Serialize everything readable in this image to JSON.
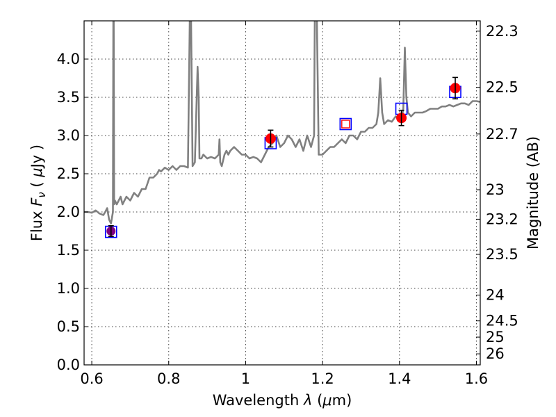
{
  "chart_data": {
    "type": "line",
    "xlabel": {
      "pre": "Wavelength ",
      "symbol": "λ",
      "units_open": " (",
      "mu": "μ",
      "units_rest": "m)"
    },
    "ylabel": {
      "pre": "Flux ",
      "symbol": "F",
      "sub": "ν",
      "units_open": " ( ",
      "mu": "μ",
      "units_rest": "Jy )"
    },
    "y2label": "Magnitude (AB)",
    "xlim": [
      0.58,
      1.61
    ],
    "ylim": [
      0.0,
      4.5
    ],
    "xticks": [
      0.6,
      0.8,
      1.0,
      1.2,
      1.4,
      1.6
    ],
    "xtick_labels": [
      "0.6",
      "0.8",
      "1",
      "1.2",
      "1.4",
      "1.6"
    ],
    "yticks": [
      0.0,
      0.5,
      1.0,
      1.5,
      2.0,
      2.5,
      3.0,
      3.5,
      4.0
    ],
    "ytick_labels": [
      "0.0",
      "0.5",
      "1.0",
      "1.5",
      "2.0",
      "2.5",
      "3.0",
      "3.5",
      "4.0"
    ],
    "y2ticks": [
      "22.3",
      "22.5",
      "22.7",
      "23",
      "23.2",
      "23.5",
      "24",
      "24.5",
      "25",
      "26"
    ],
    "grid": true,
    "colors": {
      "spectrum": "#808080",
      "observed": "#ff0000",
      "model_box": "#0000ff",
      "model_box_inner": "#ff0000",
      "purple_point": "#800080",
      "errorbar": "#000000"
    },
    "series": [
      {
        "name": "model spectrum",
        "x": [
          0.58,
          0.59,
          0.6,
          0.61,
          0.615,
          0.62,
          0.63,
          0.635,
          0.64,
          0.645,
          0.65,
          0.655,
          0.656,
          0.657,
          0.658,
          0.66,
          0.665,
          0.67,
          0.675,
          0.68,
          0.69,
          0.7,
          0.71,
          0.72,
          0.73,
          0.74,
          0.75,
          0.76,
          0.77,
          0.775,
          0.78,
          0.79,
          0.8,
          0.81,
          0.82,
          0.83,
          0.84,
          0.85,
          0.855,
          0.858,
          0.862,
          0.868,
          0.87,
          0.875,
          0.878,
          0.88,
          0.885,
          0.89,
          0.9,
          0.91,
          0.92,
          0.93,
          0.932,
          0.934,
          0.938,
          0.945,
          0.95,
          0.955,
          0.96,
          0.97,
          0.98,
          0.99,
          1.0,
          1.01,
          1.02,
          1.03,
          1.04,
          1.05,
          1.06,
          1.07,
          1.08,
          1.09,
          1.1,
          1.11,
          1.12,
          1.13,
          1.14,
          1.15,
          1.16,
          1.17,
          1.178,
          1.18,
          1.185,
          1.188,
          1.19,
          1.2,
          1.21,
          1.22,
          1.23,
          1.24,
          1.25,
          1.26,
          1.27,
          1.28,
          1.29,
          1.3,
          1.31,
          1.32,
          1.33,
          1.34,
          1.345,
          1.35,
          1.355,
          1.36,
          1.37,
          1.38,
          1.39,
          1.4,
          1.405,
          1.41,
          1.414,
          1.418,
          1.422,
          1.43,
          1.44,
          1.45,
          1.46,
          1.47,
          1.48,
          1.49,
          1.5,
          1.51,
          1.52,
          1.53,
          1.54,
          1.55,
          1.56,
          1.57,
          1.58,
          1.59,
          1.6,
          1.61
        ],
        "y": [
          2.0,
          2.0,
          1.99,
          2.02,
          2.0,
          1.98,
          1.96,
          2.0,
          2.05,
          1.9,
          1.85,
          2.0,
          4.6,
          4.6,
          2.1,
          2.15,
          2.1,
          2.15,
          2.2,
          2.1,
          2.2,
          2.15,
          2.25,
          2.2,
          2.3,
          2.3,
          2.45,
          2.45,
          2.5,
          2.55,
          2.53,
          2.58,
          2.55,
          2.6,
          2.55,
          2.6,
          2.6,
          2.58,
          4.6,
          4.6,
          2.6,
          2.65,
          3.0,
          3.9,
          3.5,
          2.7,
          2.7,
          2.75,
          2.7,
          2.72,
          2.7,
          2.75,
          2.95,
          2.65,
          2.6,
          2.75,
          2.8,
          2.75,
          2.8,
          2.85,
          2.8,
          2.75,
          2.75,
          2.7,
          2.72,
          2.7,
          2.65,
          2.75,
          2.85,
          2.9,
          3.0,
          2.85,
          2.9,
          3.0,
          2.95,
          2.85,
          2.95,
          2.8,
          3.0,
          2.85,
          3.0,
          4.6,
          4.6,
          3.5,
          2.75,
          2.75,
          2.8,
          2.85,
          2.85,
          2.9,
          2.95,
          2.9,
          3.0,
          3.0,
          2.95,
          3.05,
          3.05,
          3.1,
          3.1,
          3.15,
          3.3,
          3.75,
          3.3,
          3.15,
          3.2,
          3.18,
          3.25,
          3.2,
          3.2,
          3.35,
          4.15,
          3.5,
          3.3,
          3.25,
          3.3,
          3.3,
          3.3,
          3.32,
          3.35,
          3.35,
          3.35,
          3.38,
          3.38,
          3.4,
          3.38,
          3.4,
          3.42,
          3.42,
          3.4,
          3.45,
          3.45,
          3.44
        ]
      },
      {
        "name": "observed photometry",
        "points": [
          {
            "x": 1.065,
            "y": 2.96,
            "err": 0.11
          },
          {
            "x": 1.405,
            "y": 3.23,
            "err": 0.1
          },
          {
            "x": 1.545,
            "y": 3.62,
            "err": 0.14
          }
        ]
      },
      {
        "name": "purple photometry",
        "points": [
          {
            "x": 0.65,
            "y": 1.75,
            "err": 0.07
          }
        ]
      },
      {
        "name": "model synthetic photometry",
        "points": [
          {
            "x": 0.65,
            "y": 1.74
          },
          {
            "x": 1.065,
            "y": 2.9
          },
          {
            "x": 1.405,
            "y": 3.35
          },
          {
            "x": 1.545,
            "y": 3.57
          }
        ]
      },
      {
        "name": "model point (red inner)",
        "points": [
          {
            "x": 1.26,
            "y": 3.15
          }
        ]
      }
    ]
  }
}
